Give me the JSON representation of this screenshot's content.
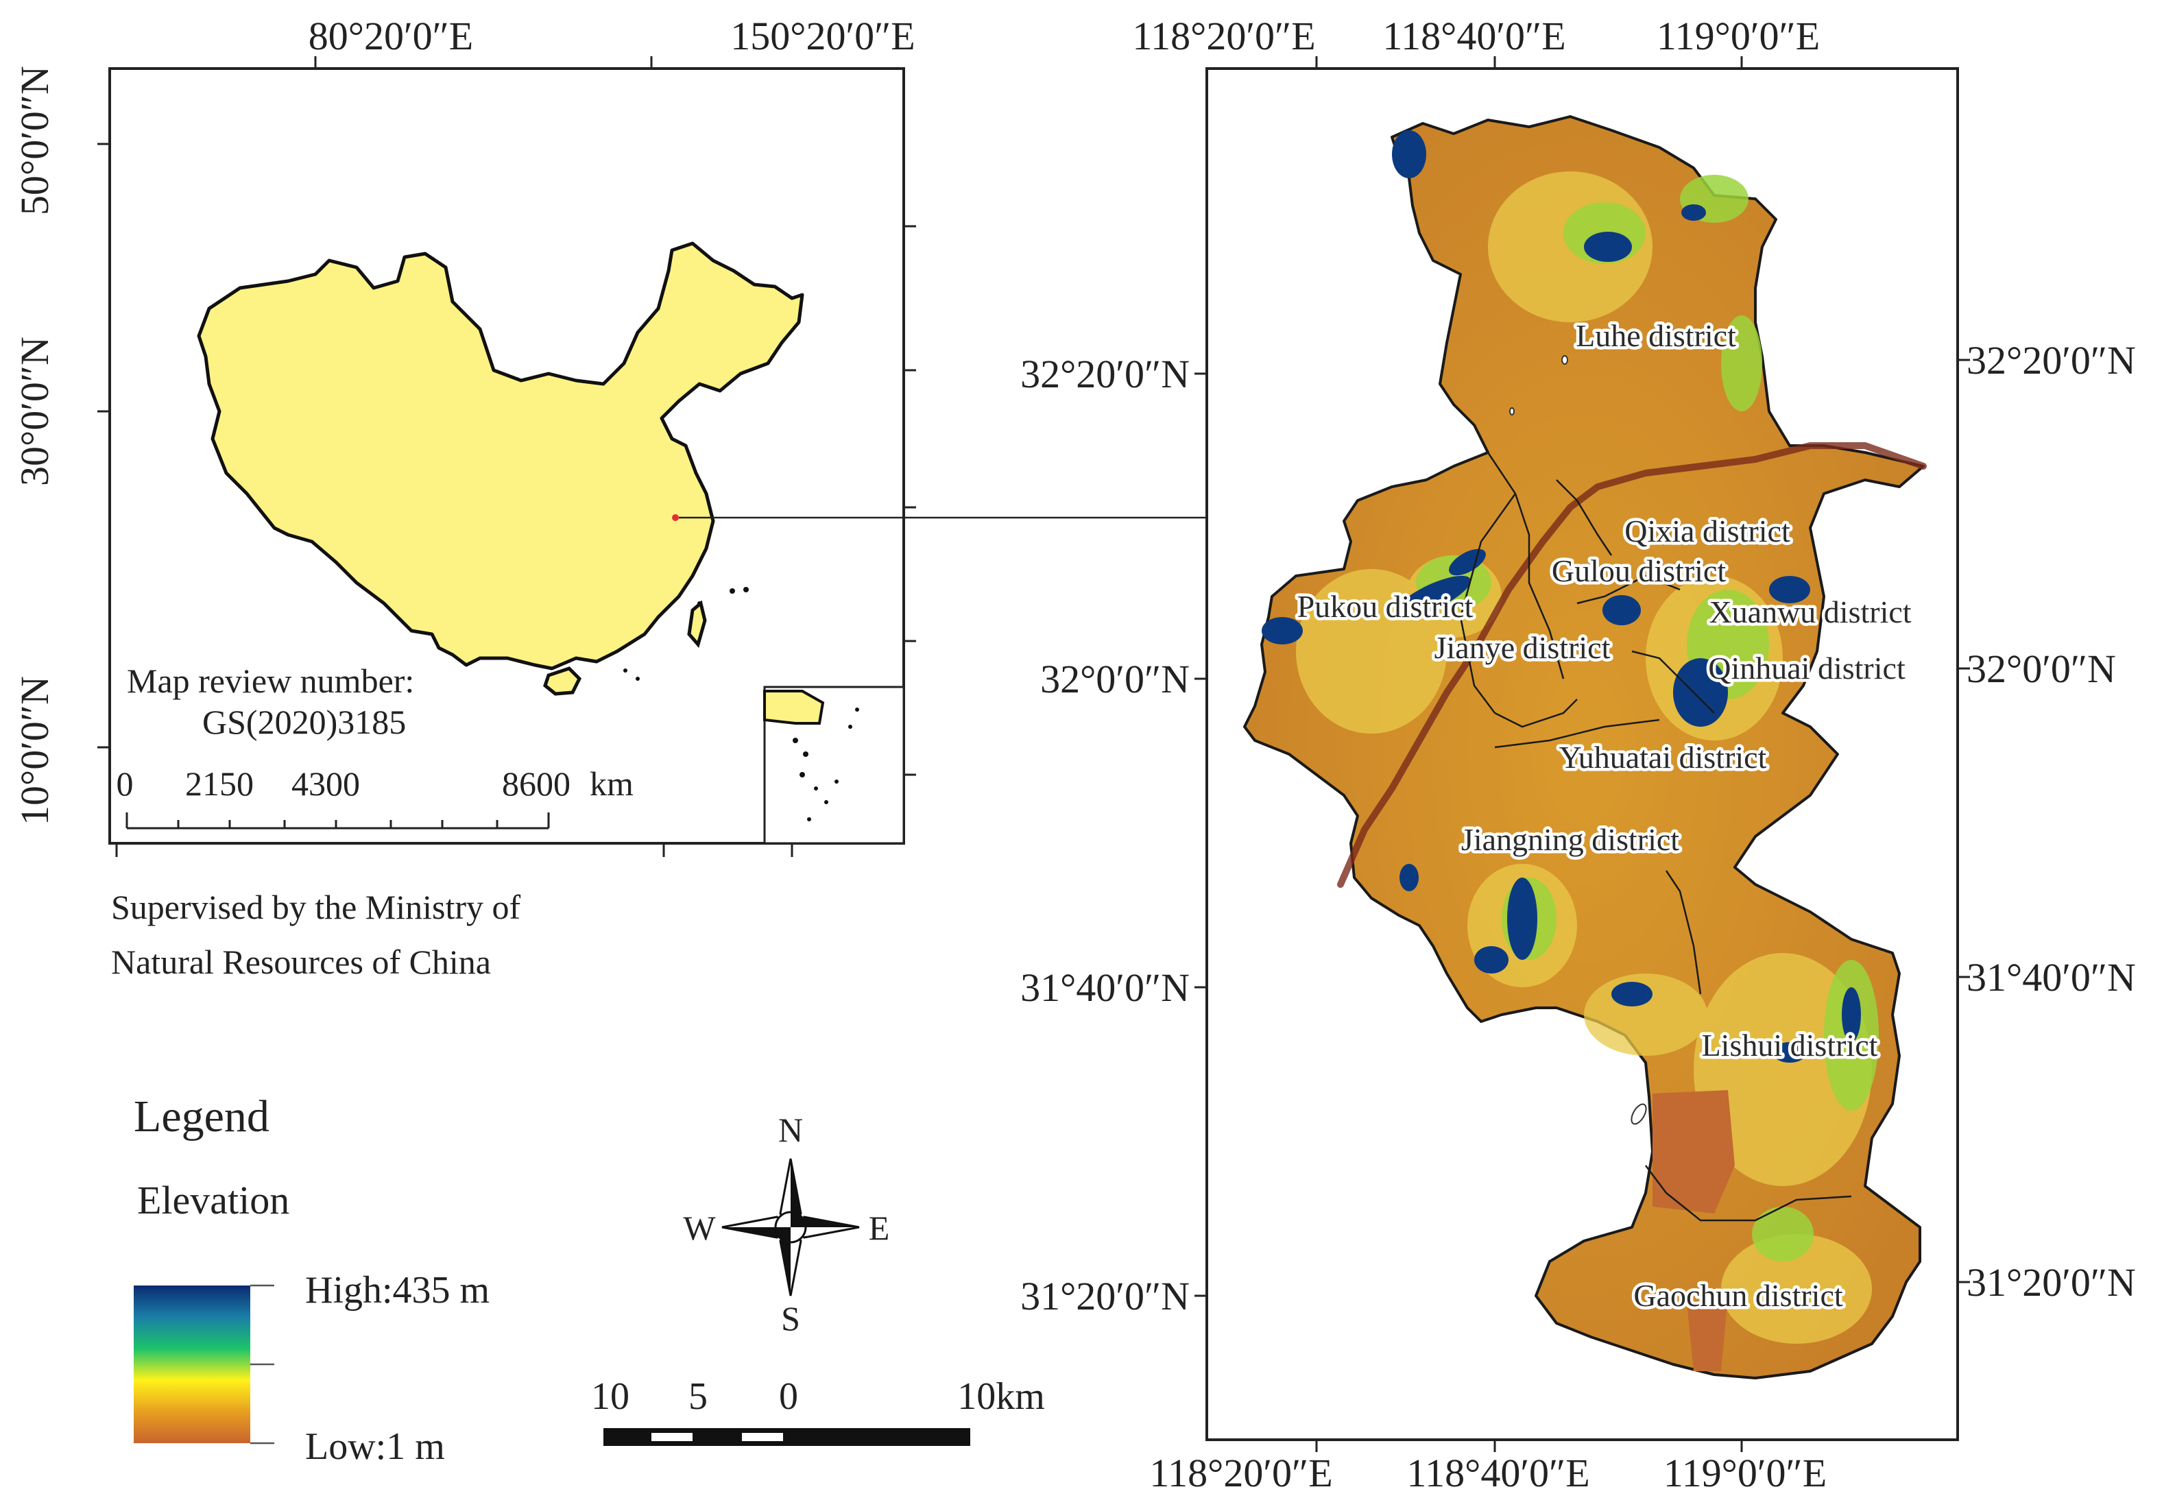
{
  "inset_map": {
    "top_lon_labels": [
      "80°20′0″E",
      "150°20′0″E"
    ],
    "left_lat_labels": [
      "50°0′0″N",
      "30°0′0″N",
      "10°0′0″N"
    ],
    "review_line1": "Map review number:",
    "review_line2": "GS(2020)3185",
    "scale_ticks": [
      "0",
      "2150",
      "4300",
      "8600"
    ],
    "scale_unit": "km",
    "supervised_line1": "Supervised by the Ministry of",
    "supervised_line2": "Natural Resources of China",
    "land_color": "#fdf384",
    "location_marker_color": "#e03030"
  },
  "main_map": {
    "top_lon_labels": [
      "118°20′0″E",
      "118°40′0″E",
      "119°0′0″E"
    ],
    "bottom_lon_labels": [
      "118°20′0″E",
      "118°40′0″E",
      "119°0′0″E"
    ],
    "left_lat_labels": [
      "32°20′0″N",
      "32°0′0″N",
      "31°40′0″N",
      "31°20′0″N"
    ],
    "right_lat_labels": [
      "32°20′0″N",
      "32°0′0″N",
      "31°40′0″N",
      "31°20′0″N"
    ],
    "districts": [
      "Luhe district",
      "Qixia district",
      "Gulou district",
      "Xuanwu district",
      "Pukou district",
      "Jianye district",
      "Qinhuai district",
      "Yuhuatai district",
      "Jiangning district",
      "Lishui district",
      "Gaochun district"
    ],
    "low_color": "#c97a2a",
    "high_color": "#0c3a80"
  },
  "legend": {
    "title": "Legend",
    "subtitle": "Elevation",
    "high_label": "High:435 m",
    "low_label": "Low:1 m",
    "gradient_colors": [
      "#0b2a72",
      "#1a7fa8",
      "#1cc36a",
      "#fff21a",
      "#e8a020",
      "#c8642e"
    ]
  },
  "compass": {
    "n": "N",
    "s": "S",
    "w": "W",
    "e": "E",
    "icon": "compass-rose-icon"
  },
  "scale_bar": {
    "ticks": [
      "10",
      "5",
      "0",
      "10km"
    ]
  }
}
